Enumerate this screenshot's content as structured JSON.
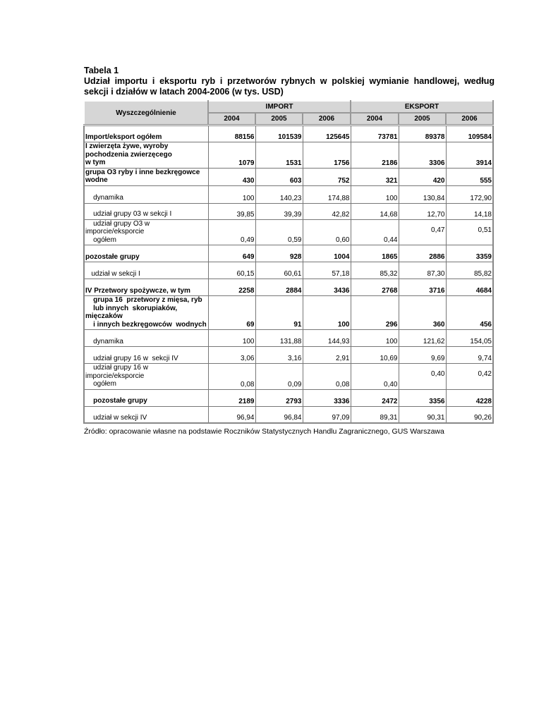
{
  "title": {
    "line1": "Tabela 1",
    "line2": "Udział importu i eksportu ryb i przetworów rybnych w polskiej wymianie handlowej, według",
    "line3": "sekcji i działów w latach 2004-2006 (w tys. USD)"
  },
  "table": {
    "corner": "Wyszczególnienie",
    "groups": [
      "IMPORT",
      "EKSPORT"
    ],
    "years": [
      "2004",
      "2005",
      "2006",
      "2004",
      "2005",
      "2006"
    ],
    "rows": [
      {
        "label": "Import/eksport ogółem",
        "bold": true,
        "values": [
          "88156",
          "101539",
          "125645",
          "73781",
          "89378",
          "109584"
        ]
      },
      {
        "label": "I zwierzęta żywe, wyroby\npochodzenia zwierzęcego\nw tym",
        "bold": true,
        "values": [
          "1079",
          "1531",
          "1756",
          "2186",
          "3306",
          "3914"
        ]
      },
      {
        "label": "grupa O3 ryby i inne bezkręgowce\nwodne",
        "bold": true,
        "values": [
          "430",
          "603",
          "752",
          "321",
          "420",
          "555"
        ]
      },
      {
        "label": "    dynamika",
        "bold": false,
        "values": [
          "100",
          "140,23",
          "174,88",
          "100",
          "130,84",
          "172,90"
        ]
      },
      {
        "label": "    udział grupy 03 w sekcji I",
        "bold": false,
        "values": [
          "39,85",
          "39,39",
          "42,82",
          "14,68",
          "12,70",
          "14,18"
        ]
      },
      {
        "label": "    udział grupy O3 w\nimporcie/eksporcie\n    ogółem",
        "bold": false,
        "values": [
          "0,49",
          "0,59",
          "0,60",
          "0,44",
          "0,47",
          "0,51"
        ],
        "mid": [
          4,
          5
        ]
      },
      {
        "label": "pozostałe grupy",
        "bold": true,
        "values": [
          "649",
          "928",
          "1004",
          "1865",
          "2886",
          "3359"
        ]
      },
      {
        "label": "   udział w sekcji I",
        "bold": false,
        "values": [
          "60,15",
          "60,61",
          "57,18",
          "85,32",
          "87,30",
          "85,82"
        ]
      },
      {
        "label": "IV Przetwory spożywcze, w tym",
        "bold": true,
        "values": [
          "2258",
          "2884",
          "3436",
          "2768",
          "3716",
          "4684"
        ]
      },
      {
        "label": "    grupa 16  przetwory z mięsa, ryb\n    lub innych  skorupiaków,\nmięczaków\n    i innych bezkręgowców  wodnych",
        "bold": true,
        "values": [
          "69",
          "91",
          "100",
          "296",
          "360",
          "456"
        ]
      },
      {
        "label": "    dynamika",
        "bold": false,
        "values": [
          "100",
          "131,88",
          "144,93",
          "100",
          "121,62",
          "154,05"
        ]
      },
      {
        "label": "    udział grupy 16 w  sekcji IV",
        "bold": false,
        "values": [
          "3,06",
          "3,16",
          "2,91",
          "10,69",
          "9,69",
          "9,74"
        ]
      },
      {
        "label": "    udział grupy 16 w\nimporcie/eksporcie\n    ogółem",
        "bold": false,
        "values": [
          "0,08",
          "0,09",
          "0,08",
          "0,40",
          "0,40",
          "0,42"
        ],
        "mid": [
          4,
          5
        ]
      },
      {
        "label": "    pozostałe grupy",
        "bold": true,
        "values": [
          "2189",
          "2793",
          "3336",
          "2472",
          "3356",
          "4228"
        ]
      },
      {
        "label": "    udział w sekcji IV",
        "bold": false,
        "values": [
          "96,94",
          "96,84",
          "97,09",
          "89,31",
          "90,31",
          "90,26"
        ]
      }
    ]
  },
  "source": "Źródło: opracowanie własne na podstawie Roczników Statystycznych Handlu Zagranicznego, GUS Warszawa"
}
